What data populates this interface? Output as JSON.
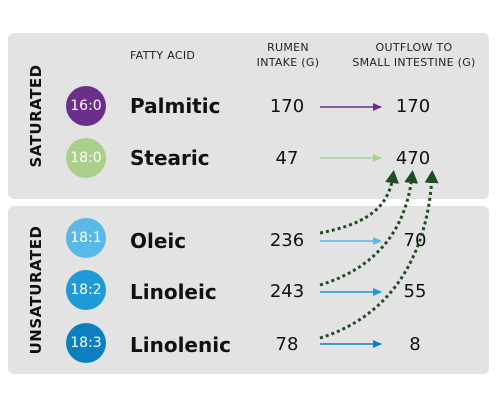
{
  "headers": {
    "fatty_acid": "FATTY ACID",
    "intake_line1": "RUMEN",
    "intake_line2": "INTAKE (g)",
    "outflow_line1": "OUTFLOW TO",
    "outflow_line2": "SMALL INTESTINE (g)"
  },
  "groups": {
    "saturated": "SATURATED",
    "unsaturated": "UNSATURATED"
  },
  "rows": [
    {
      "code": "16:0",
      "name": "Palmitic",
      "intake": "170",
      "outflow": "170",
      "color": "#6b2e8a",
      "arrow": "#6b2e8a"
    },
    {
      "code": "18:0",
      "name": "Stearic",
      "intake": "47",
      "outflow": "470",
      "color": "#a9cf8a",
      "arrow": "#a9cf8a"
    },
    {
      "code": "18:1",
      "name": "Oleic",
      "intake": "236",
      "outflow": "70",
      "color": "#5ab8e6",
      "arrow": "#5ab8e6"
    },
    {
      "code": "18:2",
      "name": "Linoleic",
      "intake": "243",
      "outflow": "55",
      "color": "#1e9ad6",
      "arrow": "#1e9ad6"
    },
    {
      "code": "18:3",
      "name": "Linolenic",
      "intake": "78",
      "outflow": "8",
      "color": "#0b7fbf",
      "arrow": "#0b7fbf"
    }
  ],
  "colors": {
    "panel": "#e3e3e4",
    "hydrogenation_arrow": "#1f4d1f"
  }
}
